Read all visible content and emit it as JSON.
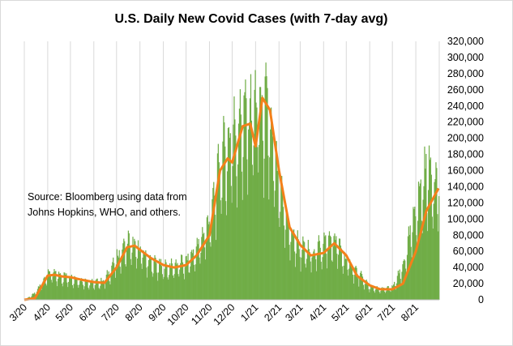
{
  "chart_data": {
    "type": "bar",
    "title": "U.S. Daily New Covid Cases (with 7-day avg)",
    "xlabel": "",
    "ylabel": "",
    "ylim": [
      0,
      320000
    ],
    "y_ticks": [
      "0",
      "20,000",
      "40,000",
      "60,000",
      "80,000",
      "100,000",
      "120,000",
      "140,000",
      "160,000",
      "180,000",
      "200,000",
      "220,000",
      "240,000",
      "260,000",
      "280,000",
      "300,000",
      "320,000"
    ],
    "x_ticks": [
      "3/20",
      "4/20",
      "5/20",
      "6/20",
      "7/20",
      "8/20",
      "9/20",
      "10/20",
      "11/20",
      "12/20",
      "1/21",
      "2/21",
      "3/21",
      "4/21",
      "5/21",
      "6/21",
      "7/21",
      "8/21"
    ],
    "grid": "vertical",
    "legend": "none",
    "annotation": "Source:  Bloomberg using data from Johns Hopkins, WHO, and others.",
    "colors": {
      "bars": "#70ad47",
      "avg_line": "#f4801a",
      "grid": "#d9d9d9"
    },
    "series": [
      {
        "type": "bar",
        "x": [
          "3/1/20",
          "3/15/20",
          "4/1/20",
          "4/15/20",
          "5/1/20",
          "5/15/20",
          "6/1/20",
          "6/15/20",
          "7/1/20",
          "7/15/20",
          "8/1/20",
          "8/15/20",
          "9/1/20",
          "9/15/20",
          "10/1/20",
          "10/15/20",
          "11/1/20",
          "11/15/20",
          "12/1/20",
          "12/15/20",
          "1/1/21",
          "1/15/21",
          "2/1/21",
          "2/15/21",
          "3/1/21",
          "3/15/21",
          "4/1/21",
          "4/15/21",
          "5/1/21",
          "5/15/21",
          "6/1/21",
          "6/15/21",
          "7/1/21",
          "7/15/21",
          "8/1/21",
          "8/15/21",
          "8/31/21"
        ],
        "values": [
          0,
          8000,
          32000,
          29000,
          27000,
          23000,
          20000,
          23000,
          50000,
          68000,
          58000,
          45000,
          38000,
          41000,
          45000,
          60000,
          95000,
          165000,
          195000,
          215000,
          230000,
          225000,
          130000,
          80000,
          62000,
          55000,
          68000,
          72000,
          45000,
          32000,
          15000,
          12000,
          15000,
          40000,
          110000,
          155000,
          140000
        ]
      },
      {
        "type": "line",
        "x": [
          "3/1/20",
          "3/15/20",
          "4/1/20",
          "4/10/20",
          "4/20/20",
          "5/1/20",
          "5/15/20",
          "6/1/20",
          "6/15/20",
          "7/1/20",
          "7/15/20",
          "7/25/20",
          "8/1/20",
          "8/15/20",
          "9/1/20",
          "9/15/20",
          "10/1/20",
          "10/15/20",
          "11/1/20",
          "11/15/20",
          "11/25/20",
          "12/1/20",
          "12/15/20",
          "12/25/20",
          "1/1/21",
          "1/10/21",
          "1/20/21",
          "2/1/21",
          "2/15/21",
          "3/1/21",
          "3/15/21",
          "4/1/21",
          "4/15/21",
          "5/1/21",
          "5/15/21",
          "6/1/21",
          "6/15/21",
          "7/1/21",
          "7/15/21",
          "8/1/21",
          "8/15/21",
          "8/31/21"
        ],
        "values": [
          0,
          2000,
          30000,
          31000,
          29000,
          28000,
          25000,
          22000,
          21000,
          40000,
          65000,
          67000,
          62000,
          52000,
          43000,
          40000,
          43000,
          55000,
          80000,
          160000,
          175000,
          170000,
          215000,
          218000,
          190000,
          250000,
          235000,
          160000,
          90000,
          68000,
          55000,
          58000,
          70000,
          55000,
          30000,
          18000,
          13000,
          13000,
          20000,
          60000,
          110000,
          138000
        ]
      }
    ]
  }
}
